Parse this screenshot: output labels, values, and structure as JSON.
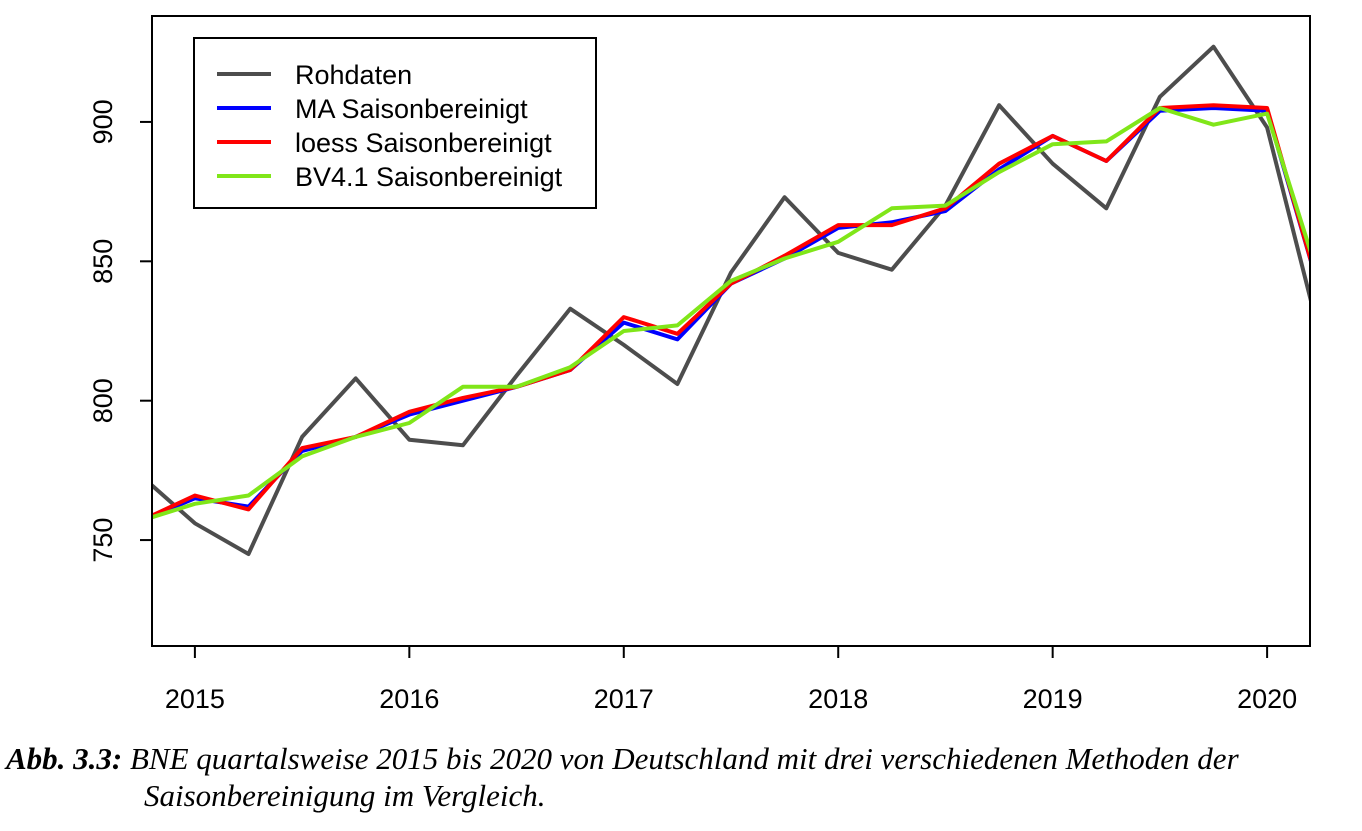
{
  "chart_data": {
    "type": "line",
    "title": "",
    "xlabel": "",
    "ylabel": "",
    "x": [
      2014.75,
      2015.0,
      2015.25,
      2015.5,
      2015.75,
      2016.0,
      2016.25,
      2016.5,
      2016.75,
      2017.0,
      2017.25,
      2017.5,
      2017.75,
      2018.0,
      2018.25,
      2018.5,
      2018.75,
      2019.0,
      2019.25,
      2019.5,
      2019.75,
      2020.0,
      2020.25
    ],
    "x_ticks": [
      "2015",
      "2016",
      "2017",
      "2018",
      "2019",
      "2020"
    ],
    "x_tick_values": [
      2015,
      2016,
      2017,
      2018,
      2019,
      2020
    ],
    "y_ticks": [
      "750",
      "800",
      "850",
      "900"
    ],
    "y_tick_values": [
      750,
      800,
      850,
      900
    ],
    "xlim": [
      2014.8,
      2020.2
    ],
    "ylim": [
      712,
      938
    ],
    "grid": false,
    "legend_position": "top-left",
    "series": [
      {
        "name": "Rohdaten",
        "color": "#4d4d4d",
        "values": [
          773,
          756,
          745,
          787,
          808,
          786,
          784,
          809,
          833,
          820,
          806,
          846,
          873,
          853,
          847,
          870,
          906,
          885,
          869,
          909,
          927,
          898,
          822
        ]
      },
      {
        "name": "MA Saisonbereinigt",
        "color": "#0000ff",
        "values": [
          757,
          765,
          762,
          782,
          787,
          795,
          800,
          805,
          811,
          828,
          822,
          842,
          851,
          862,
          864,
          868,
          883,
          895,
          886,
          904,
          905,
          904,
          838
        ]
      },
      {
        "name": "loess Saisonbereinigt",
        "color": "#ff0000",
        "values": [
          757,
          766,
          761,
          783,
          787,
          796,
          801,
          805,
          811,
          830,
          824,
          842,
          852,
          863,
          863,
          869,
          885,
          895,
          886,
          905,
          906,
          905,
          838
        ]
      },
      {
        "name": "BV4.1 Saisonbereinigt",
        "color": "#80e619",
        "values": [
          757,
          763,
          766,
          780,
          787,
          792,
          805,
          805,
          812,
          825,
          827,
          843,
          851,
          857,
          869,
          870,
          882,
          892,
          893,
          905,
          899,
          903,
          842
        ]
      }
    ]
  },
  "caption": {
    "label": "Abb. 3.3:",
    "text_line1": "BNE quartalsweise 2015 bis 2020 von Deutschland mit drei verschiedenen Methoden der",
    "text_line2": "Saisonbereinigung im Vergleich."
  }
}
